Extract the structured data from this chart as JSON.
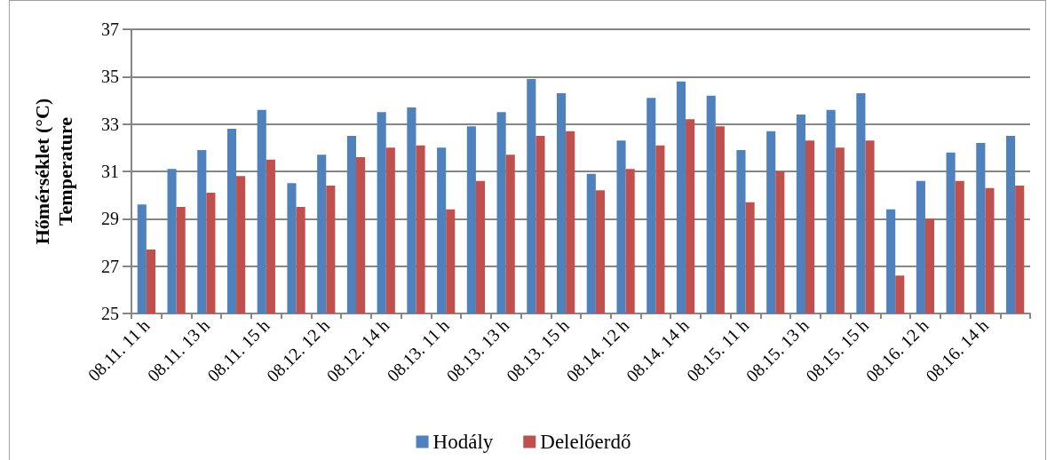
{
  "chart_data": {
    "type": "bar",
    "ylabel": "Hőmérséklet (°C)\nTemperature",
    "categories": [
      "08.11. 11 h",
      null,
      "08.11. 13 h",
      null,
      "08.11. 15 h",
      null,
      "08.12. 12 h",
      null,
      "08.12. 14 h",
      null,
      "08.13. 11 h",
      null,
      "08.13. 13 h",
      null,
      "08.13. 15 h",
      null,
      "08.14. 12 h",
      null,
      "08.14. 14 h",
      null,
      "08.15. 11 h",
      null,
      "08.15. 13 h",
      null,
      "08.15. 15 h",
      null,
      "08.16. 12 h",
      null,
      "08.16. 14 h",
      null
    ],
    "series": [
      {
        "name": "Hodály",
        "color": "#4f81bd",
        "values": [
          29.6,
          31.1,
          31.9,
          32.8,
          33.6,
          30.5,
          31.7,
          32.5,
          33.5,
          33.7,
          32.0,
          32.9,
          33.5,
          34.9,
          34.3,
          30.9,
          32.3,
          34.1,
          34.8,
          34.2,
          31.9,
          32.7,
          33.4,
          33.6,
          34.3,
          29.4,
          30.6,
          31.8,
          32.2,
          32.5
        ]
      },
      {
        "name": "Delelőerdő",
        "color": "#c0504d",
        "values": [
          27.7,
          29.5,
          30.1,
          30.8,
          31.5,
          29.5,
          30.4,
          31.6,
          32.0,
          32.1,
          29.4,
          30.6,
          31.7,
          32.5,
          32.7,
          30.2,
          31.1,
          32.1,
          33.2,
          32.9,
          29.7,
          31.0,
          32.3,
          32.0,
          32.3,
          26.6,
          29.0,
          30.6,
          30.3,
          30.4
        ]
      }
    ],
    "ylim": [
      25,
      37
    ],
    "yticks": [
      25,
      27,
      29,
      31,
      33,
      35,
      37
    ],
    "grid": "y",
    "legend": "bottom"
  }
}
